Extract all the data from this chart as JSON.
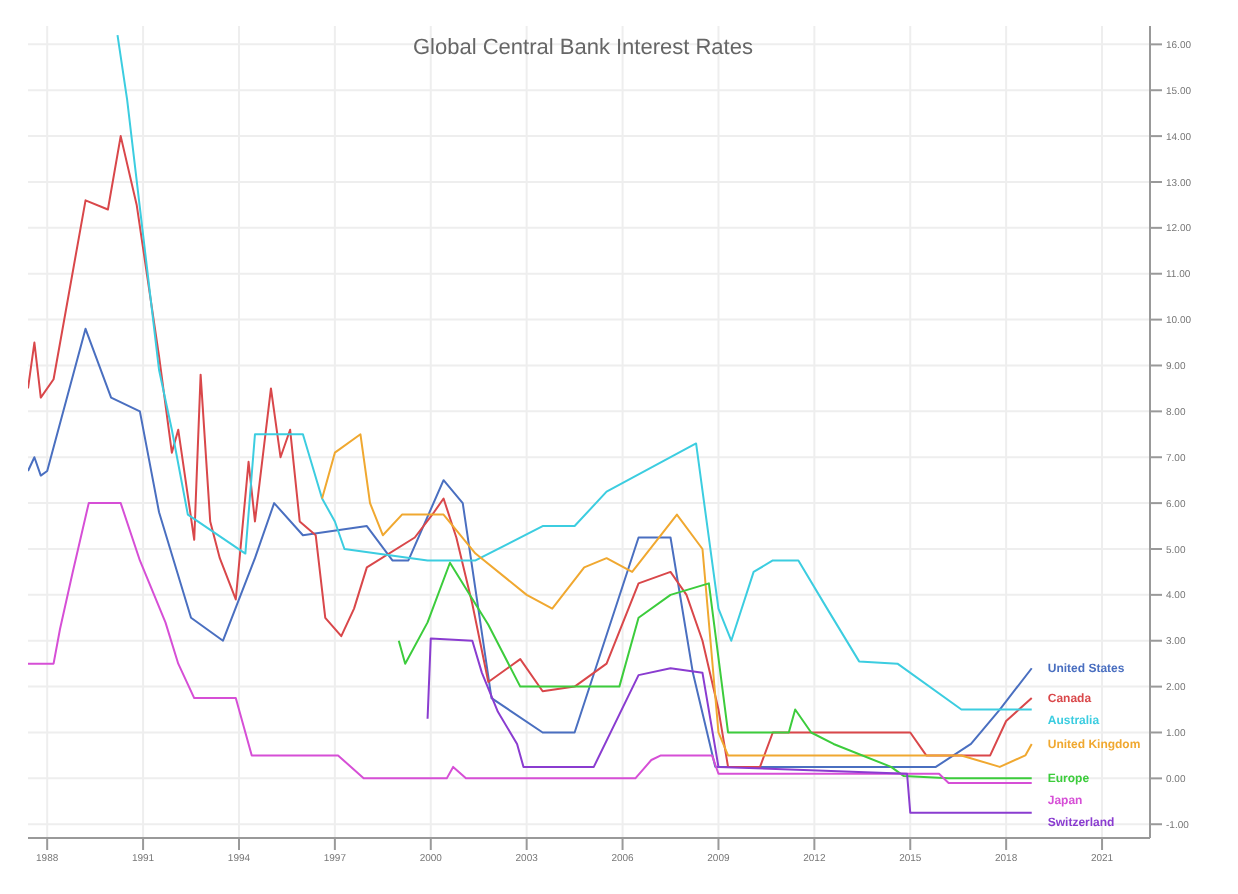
{
  "chart_data": {
    "type": "line",
    "title": "Global Central Bank Interest Rates",
    "xlim": [
      1987.4,
      2022.5
    ],
    "xticks": [
      1988,
      1991,
      1994,
      1997,
      2000,
      2003,
      2006,
      2009,
      2012,
      2015,
      2018,
      2021
    ],
    "ylim": [
      -1.3,
      16.4
    ],
    "yticks": [
      {
        "value": -1,
        "label": "-1.00"
      },
      {
        "value": 0,
        "label": "0.00"
      },
      {
        "value": 1,
        "label": "1.00"
      },
      {
        "value": 2,
        "label": "2.00"
      },
      {
        "value": 3,
        "label": "3.00"
      },
      {
        "value": 4,
        "label": "4.00"
      },
      {
        "value": 5,
        "label": "5.00"
      },
      {
        "value": 6,
        "label": "6.00"
      },
      {
        "value": 7,
        "label": "7.00"
      },
      {
        "value": 8,
        "label": "8.00"
      },
      {
        "value": 9,
        "label": "9.00"
      },
      {
        "value": 10,
        "label": "10.00"
      },
      {
        "value": 11,
        "label": "11.00"
      },
      {
        "value": 12,
        "label": "12.00"
      },
      {
        "value": 13,
        "label": "13.00"
      },
      {
        "value": 14,
        "label": "14.00"
      },
      {
        "value": 15,
        "label": "15.00"
      },
      {
        "value": 16,
        "label": "16.00"
      }
    ],
    "grid": true,
    "marker": "none",
    "line_style": "solid",
    "series": [
      {
        "name": "United States",
        "color": "#4a6fc0",
        "x": [
          1987.4,
          1987.6,
          1987.8,
          1988.0,
          1989.2,
          1990.0,
          1990.9,
          1991.5,
          1992.5,
          1993.5,
          1994.5,
          1995.1,
          1996.0,
          1998.0,
          1998.8,
          1999.3,
          2000.4,
          2001.0,
          2001.9,
          2003.5,
          2004.5,
          2006.5,
          2007.5,
          2008.2,
          2008.9,
          2015.8,
          2016.9,
          2017.8,
          2018.8
        ],
        "values": [
          6.7,
          7.0,
          6.6,
          6.7,
          9.8,
          8.3,
          8.0,
          5.8,
          3.5,
          3.0,
          4.8,
          6.0,
          5.3,
          5.5,
          4.75,
          4.75,
          6.5,
          6.0,
          1.75,
          1.0,
          1.0,
          5.25,
          5.25,
          2.3,
          0.25,
          0.25,
          0.75,
          1.5,
          2.4
        ]
      },
      {
        "name": "Canada",
        "color": "#d9474a",
        "x": [
          1987.4,
          1987.6,
          1987.8,
          1988.2,
          1989.2,
          1989.9,
          1990.3,
          1990.8,
          1991.5,
          1991.9,
          1992.1,
          1992.6,
          1992.8,
          1993.1,
          1993.4,
          1993.9,
          1994.3,
          1994.5,
          1995.0,
          1995.3,
          1995.6,
          1995.9,
          1996.4,
          1996.7,
          1997.2,
          1997.6,
          1998.0,
          1999.5,
          2000.1,
          2000.4,
          2000.8,
          2001.3,
          2001.8,
          2002.4,
          2002.8,
          2003.5,
          2004.5,
          2005.5,
          2006.5,
          2007.5,
          2008.0,
          2008.5,
          2009.0,
          2009.3,
          2010.3,
          2010.7,
          2015.0,
          2015.5,
          2017.5,
          2018.0,
          2018.8
        ],
        "values": [
          8.5,
          9.5,
          8.3,
          8.7,
          12.6,
          12.4,
          14.0,
          12.5,
          9.2,
          7.1,
          7.6,
          5.2,
          8.8,
          5.6,
          4.8,
          3.9,
          6.9,
          5.6,
          8.5,
          7.0,
          7.6,
          5.6,
          5.3,
          3.5,
          3.1,
          3.7,
          4.6,
          5.25,
          5.8,
          6.1,
          5.25,
          3.8,
          2.1,
          2.4,
          2.6,
          1.9,
          2.0,
          2.5,
          4.25,
          4.5,
          4.0,
          3.0,
          1.5,
          0.25,
          0.25,
          1.0,
          1.0,
          0.5,
          0.5,
          1.25,
          1.75
        ]
      },
      {
        "name": "Australia",
        "color": "#3ccde0",
        "x": [
          1990.2,
          1990.5,
          1991.5,
          1991.9,
          1992.4,
          1994.2,
          1994.5,
          1996.0,
          1996.6,
          1997.0,
          1997.3,
          1999.9,
          2001.4,
          2003.5,
          2004.5,
          2005.5,
          2008.3,
          2009.0,
          2009.4,
          2010.1,
          2010.7,
          2011.5,
          2012.4,
          2013.4,
          2014.6,
          2016.6,
          2018.8
        ],
        "values": [
          16.2,
          14.8,
          8.9,
          7.6,
          5.75,
          4.9,
          7.5,
          7.5,
          6.1,
          5.6,
          5.0,
          4.75,
          4.75,
          5.5,
          5.5,
          6.25,
          7.3,
          3.7,
          3.0,
          4.5,
          4.75,
          4.75,
          3.7,
          2.55,
          2.5,
          1.5,
          1.5
        ]
      },
      {
        "name": "United Kingdom",
        "color": "#f0a830",
        "x": [
          1996.6,
          1997.0,
          1997.8,
          1998.1,
          1998.5,
          1999.1,
          2000.4,
          2001.4,
          2003.0,
          2003.8,
          2004.8,
          2005.5,
          2006.3,
          2007.7,
          2008.5,
          2009.0,
          2009.3,
          2016.6,
          2017.8,
          2018.6,
          2018.8
        ],
        "values": [
          6.1,
          7.1,
          7.5,
          6.0,
          5.3,
          5.75,
          5.75,
          4.9,
          4.0,
          3.7,
          4.6,
          4.8,
          4.5,
          5.75,
          5.0,
          1.0,
          0.5,
          0.5,
          0.25,
          0.5,
          0.75
        ]
      },
      {
        "name": "Europe",
        "color": "#3ccc3c",
        "x": [
          1999.0,
          1999.2,
          1999.9,
          2000.6,
          2001.8,
          2002.8,
          2003.5,
          2005.9,
          2006.5,
          2007.5,
          2008.7,
          2009.3,
          2011.2,
          2011.4,
          2011.9,
          2012.6,
          2014.4,
          2014.8,
          2016.2,
          2018.8
        ],
        "values": [
          3.0,
          2.5,
          3.4,
          4.7,
          3.35,
          2.0,
          2.0,
          2.0,
          3.5,
          4.0,
          4.25,
          1.0,
          1.0,
          1.5,
          1.0,
          0.75,
          0.25,
          0.05,
          0.0,
          0.0
        ]
      },
      {
        "name": "Japan",
        "color": "#d64fd6",
        "x": [
          1987.4,
          1988.2,
          1988.4,
          1988.8,
          1989.3,
          1990.3,
          1990.9,
          1991.7,
          1992.1,
          1992.6,
          1993.9,
          1994.4,
          1997.1,
          1997.9,
          2000.5,
          2000.7,
          2001.1,
          2006.4,
          2006.9,
          2007.2,
          2008.8,
          2009.0,
          2015.9,
          2016.2,
          2018.8
        ],
        "values": [
          2.5,
          2.5,
          3.25,
          4.5,
          6.0,
          6.0,
          4.75,
          3.4,
          2.5,
          1.75,
          1.75,
          0.5,
          0.5,
          0.0,
          0.0,
          0.25,
          0.0,
          0.0,
          0.4,
          0.5,
          0.5,
          0.1,
          0.1,
          -0.1,
          -0.1
        ]
      },
      {
        "name": "Switzerland",
        "color": "#8a3cd0",
        "x": [
          1999.9,
          2000.0,
          2001.3,
          2001.6,
          2002.1,
          2002.7,
          2002.9,
          2004.5,
          2005.1,
          2006.5,
          2007.5,
          2008.5,
          2009.0,
          2014.9,
          2015.0,
          2018.8
        ],
        "values": [
          1.3,
          3.05,
          3.0,
          2.3,
          1.45,
          0.75,
          0.25,
          0.25,
          0.25,
          2.25,
          2.4,
          2.3,
          0.25,
          0.1,
          -0.75,
          -0.75
        ]
      }
    ]
  }
}
